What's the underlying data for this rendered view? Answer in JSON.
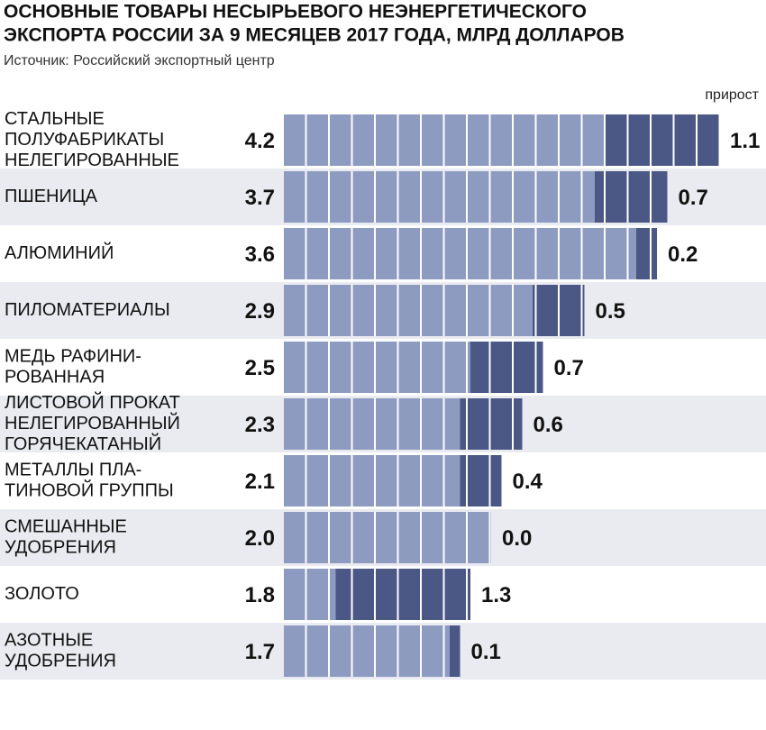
{
  "title": [
    "ОСНОВНЫЕ ТОВАРЫ НЕСЫРЬЕВОГО НЕЭНЕРГЕТИЧЕСКОГО",
    "ЭКСПОРТА РОССИИ ЗА 9 МЕСЯЦЕВ 2017 ГОДА, МЛРД ДОЛЛАРОВ"
  ],
  "source": "Источник: Российский экспортный центр",
  "chart_data": {
    "type": "bar",
    "categories": [
      [
        "СТАЛЬНЫЕ",
        "ПОЛУФАБРИКАТЫ",
        "НЕЛЕГИРОВАННЫЕ"
      ],
      [
        "ПШЕНИЦА"
      ],
      [
        "АЛЮМИНИЙ"
      ],
      [
        "ПИЛОМАТЕРИАЛЫ"
      ],
      [
        "МЕДЬ РАФИНИ-",
        "РОВАННАЯ"
      ],
      [
        "ЛИСТОВОЙ ПРОКАТ",
        "НЕЛЕГИРОВАННЫЙ",
        "ГОРЯЧЕКАТАНЫЙ"
      ],
      [
        "МЕТАЛЛЫ ПЛА-",
        "ТИНОВОЙ ГРУППЫ"
      ],
      [
        "СМЕШАННЫЕ",
        "УДОБРЕНИЯ"
      ],
      [
        "ЗОЛОТО"
      ],
      [
        "АЗОТНЫЕ",
        "УДОБРЕНИЯ"
      ]
    ],
    "values": [
      4.2,
      3.7,
      3.6,
      2.9,
      2.5,
      2.3,
      2.1,
      2.0,
      1.8,
      1.7
    ],
    "value_labels": [
      "4.2",
      "3.7",
      "3.6",
      "2.9",
      "2.5",
      "2.3",
      "2.1",
      "2.0",
      "1.8",
      "1.7"
    ],
    "color": "#8e9bc1",
    "growth": {
      "name": "прирост",
      "color": "#4b5784",
      "values": [
        1.1,
        0.7,
        0.2,
        0.5,
        0.7,
        0.6,
        0.4,
        0.0,
        1.3,
        0.1
      ],
      "value_labels": [
        "1.1",
        "0.7",
        "0.2",
        "0.5",
        "0.7",
        "0.6",
        "0.4",
        "0.0",
        "1.3",
        "0.1"
      ]
    },
    "xlim": [
      0,
      4.5
    ]
  }
}
